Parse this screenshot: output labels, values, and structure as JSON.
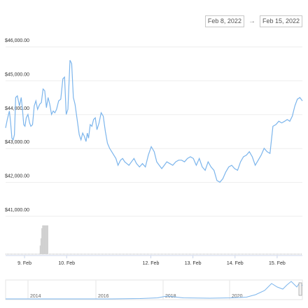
{
  "range": {
    "from": "Feb 8, 2022",
    "arrow": "→",
    "to": "Feb 15, 2022"
  },
  "chart_data": {
    "type": "line",
    "title": "",
    "xlabel": "",
    "ylabel": "",
    "ylim": [
      40500,
      46000
    ],
    "y_ticks": [
      "$46,000.00",
      "$45,000.00",
      "$44,000.00",
      "$43,000.00",
      "$42,000.00",
      "$41,000.00"
    ],
    "y_tick_values": [
      46000,
      45000,
      44000,
      43000,
      42000,
      41000
    ],
    "x_ticks": [
      "9. Feb",
      "10. Feb",
      "12. Feb",
      "13. Feb",
      "14. Feb",
      "15. Feb"
    ],
    "x_tick_days": [
      9,
      10,
      12,
      13,
      14,
      15
    ],
    "xlim_days": [
      8.55,
      15.6
    ],
    "grid": true,
    "line_color": "#7cb5ec",
    "series": [
      {
        "x_days": [
          8.55,
          8.59,
          8.64,
          8.67,
          8.7,
          8.73,
          8.76,
          8.79,
          8.83,
          8.88,
          8.92,
          8.95,
          8.98,
          9.01,
          9.04,
          9.08,
          9.12,
          9.15,
          9.19,
          9.23,
          9.27,
          9.31,
          9.36,
          9.4,
          9.44,
          9.48,
          9.52,
          9.56,
          9.6,
          9.64,
          9.68,
          9.72,
          9.76,
          9.81,
          9.86,
          9.91,
          9.95,
          9.99,
          10.03,
          10.08,
          10.12,
          10.16,
          10.2,
          10.25,
          10.3,
          10.34,
          10.38,
          10.42,
          10.46,
          10.49,
          10.52,
          10.56,
          10.6,
          10.64,
          10.68,
          10.72,
          10.77,
          10.82,
          10.87,
          10.92,
          10.97,
          11.02,
          11.07,
          11.12,
          11.17,
          11.22,
          11.28,
          11.33,
          11.38,
          11.43,
          11.48,
          11.54,
          11.6,
          11.66,
          11.73,
          11.8,
          11.87,
          11.94,
          12.01,
          12.08,
          12.14,
          12.2,
          12.26,
          12.32,
          12.38,
          12.45,
          12.52,
          12.59,
          12.66,
          12.73,
          12.8,
          12.87,
          12.94,
          13.01,
          13.08,
          13.15,
          13.22,
          13.29,
          13.36,
          13.43,
          13.5,
          13.57,
          13.64,
          13.71,
          13.78,
          13.85,
          13.92,
          13.99,
          14.06,
          14.13,
          14.2,
          14.27,
          14.34,
          14.41,
          14.48,
          14.55,
          14.62,
          14.69,
          14.76,
          14.83,
          14.9,
          14.97,
          15.04,
          15.11,
          15.18,
          15.24,
          15.3,
          15.36,
          15.42,
          15.48,
          15.54,
          15.6
        ],
        "values": [
          43400,
          43650,
          43900,
          43550,
          43100,
          43050,
          43200,
          44300,
          44350,
          44050,
          44300,
          43950,
          43500,
          43450,
          43700,
          43800,
          43550,
          43450,
          43500,
          44050,
          44200,
          43950,
          44100,
          44150,
          44550,
          44500,
          44000,
          44300,
          44100,
          43800,
          43900,
          43850,
          43950,
          44200,
          44250,
          44850,
          44900,
          43800,
          43950,
          45400,
          45300,
          44300,
          44100,
          43650,
          43200,
          43050,
          43250,
          43150,
          43000,
          43250,
          43100,
          43500,
          43450,
          43650,
          43700,
          43350,
          43550,
          43850,
          43750,
          43300,
          42950,
          42800,
          42700,
          42600,
          42500,
          42300,
          42450,
          42500,
          42400,
          42350,
          42300,
          42400,
          42500,
          42350,
          42250,
          42350,
          42250,
          42600,
          42850,
          42700,
          42400,
          42300,
          42200,
          42300,
          42400,
          42350,
          42300,
          42400,
          42450,
          42450,
          42400,
          42500,
          42550,
          42500,
          42300,
          42500,
          42250,
          42150,
          42400,
          42250,
          42150,
          41850,
          41800,
          41900,
          42100,
          42250,
          42300,
          42200,
          42150,
          42400,
          42550,
          42600,
          42700,
          42550,
          42300,
          42450,
          42600,
          42800,
          42700,
          42650,
          43450,
          43500,
          43600,
          43550,
          43600,
          43650,
          43600,
          43750,
          44050,
          44250,
          44300,
          44200
        ]
      }
    ],
    "volume": {
      "x_days": [
        9.36,
        9.38,
        9.4,
        9.42,
        9.44,
        9.46,
        9.48,
        9.5,
        9.52,
        9.54
      ],
      "values": [
        0.3,
        0.55,
        0.9,
        1.0,
        1.0,
        1.0,
        1.0,
        1.0,
        1.0,
        1.0
      ]
    },
    "navigator": {
      "year_labels": [
        "2014",
        "2016",
        "2018",
        "2020"
      ]
    }
  }
}
